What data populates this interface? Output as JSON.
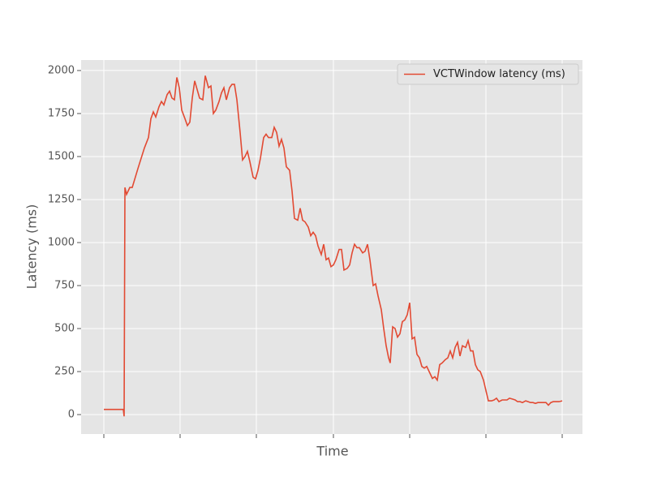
{
  "chart_data": {
    "type": "line",
    "xlabel": "Time",
    "ylabel": "Latency (ms)",
    "x": [
      0,
      22,
      24,
      25,
      26,
      28,
      32,
      35,
      42,
      50,
      55,
      58,
      61,
      64,
      68,
      71,
      74,
      78,
      81,
      84,
      87,
      90,
      93,
      96,
      100,
      103,
      106,
      109,
      112,
      115,
      118,
      122,
      125,
      129,
      132,
      135,
      138,
      142,
      145,
      148,
      151,
      155,
      158,
      161,
      164,
      168,
      171,
      174,
      177,
      180,
      184,
      187,
      190,
      193,
      197,
      200,
      203,
      207,
      210,
      213,
      216,
      219,
      222,
      225,
      229,
      232,
      235,
      239,
      242,
      245,
      248,
      252,
      255,
      258,
      261,
      264,
      268,
      271,
      274,
      277,
      280,
      283,
      286,
      290,
      293,
      296,
      300,
      303,
      306,
      309,
      312,
      315,
      319,
      322,
      325,
      328,
      332,
      335,
      338,
      342,
      345,
      348,
      351,
      353,
      356,
      359,
      362,
      365,
      368,
      371,
      374,
      377,
      380,
      383,
      386,
      389,
      392,
      395,
      398,
      402,
      405,
      408,
      411,
      414,
      417,
      421,
      424,
      427,
      430,
      433,
      436,
      439,
      442,
      446,
      449,
      452,
      455,
      458,
      461,
      464,
      468,
      471,
      474,
      478,
      481,
      484,
      487,
      491,
      494,
      497,
      500,
      504,
      507,
      510,
      513,
      516,
      520,
      523,
      526,
      529,
      532,
      535,
      539,
      542,
      545,
      548,
      551,
      554,
      558,
      561,
      565
    ],
    "series": [
      {
        "name": "VCTWindow latency (ms)",
        "color": "#E24A33",
        "values": [
          30,
          30,
          30,
          -10,
          1320,
          1280,
          1320,
          1320,
          1430,
          1550,
          1610,
          1720,
          1760,
          1730,
          1790,
          1820,
          1800,
          1860,
          1880,
          1840,
          1830,
          1960,
          1900,
          1770,
          1720,
          1680,
          1700,
          1840,
          1940,
          1890,
          1840,
          1830,
          1970,
          1900,
          1910,
          1750,
          1770,
          1820,
          1870,
          1900,
          1830,
          1900,
          1920,
          1920,
          1830,
          1640,
          1480,
          1500,
          1530,
          1470,
          1380,
          1370,
          1420,
          1490,
          1610,
          1630,
          1610,
          1610,
          1670,
          1640,
          1560,
          1600,
          1550,
          1440,
          1420,
          1300,
          1140,
          1130,
          1200,
          1130,
          1120,
          1090,
          1040,
          1060,
          1040,
          980,
          930,
          990,
          900,
          910,
          860,
          870,
          900,
          960,
          960,
          840,
          850,
          870,
          940,
          990,
          970,
          970,
          940,
          950,
          990,
          900,
          750,
          760,
          690,
          610,
          500,
          400,
          330,
          300,
          510,
          500,
          450,
          470,
          540,
          550,
          580,
          650,
          440,
          450,
          350,
          330,
          280,
          270,
          280,
          240,
          210,
          220,
          200,
          290,
          300,
          320,
          330,
          370,
          330,
          390,
          420,
          340,
          400,
          390,
          430,
          370,
          370,
          290,
          260,
          250,
          200,
          140,
          80,
          80,
          85,
          95,
          75,
          85,
          85,
          85,
          95,
          90,
          85,
          75,
          75,
          70,
          80,
          75,
          70,
          70,
          65,
          70,
          70,
          70,
          70,
          55,
          70,
          75,
          75,
          75,
          80
        ]
      }
    ],
    "xlim": [
      -28,
      590
    ],
    "xticks": [
      0,
      94,
      188,
      283,
      377,
      471,
      565
    ],
    "ylim": [
      -113,
      2061
    ],
    "yticks": [
      0,
      250,
      500,
      750,
      1000,
      1250,
      1500,
      1750,
      2000
    ],
    "grid": true,
    "legend": "upper right"
  }
}
